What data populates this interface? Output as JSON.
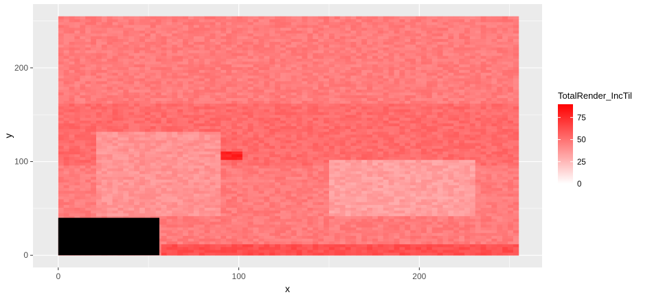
{
  "chart_data": {
    "type": "heatmap",
    "title": "",
    "xlabel": "x",
    "ylabel": "y",
    "x_range": [
      0,
      255
    ],
    "y_range": [
      0,
      255
    ],
    "xlim": [
      -14,
      268
    ],
    "ylim": [
      -13,
      268
    ],
    "x_ticks": [
      0,
      100,
      200
    ],
    "x_tick_labels": [
      "0",
      "100",
      "200"
    ],
    "y_ticks": [
      0,
      100,
      200
    ],
    "y_tick_labels": [
      "0",
      "100",
      "200"
    ],
    "grid": true,
    "panel_background": "#ebebeb",
    "gridline_color": "#ffffff",
    "legend": {
      "title": "TotalRender_IncTil",
      "position": "right",
      "breaks": [
        0,
        25,
        50,
        75
      ],
      "break_labels": [
        "0",
        "25",
        "50",
        "75"
      ],
      "limits": [
        0,
        90
      ],
      "low_color": "#ffffff",
      "high_color": "#ff0000"
    },
    "fill_regions": [
      {
        "description": "base field",
        "x": [
          0,
          255
        ],
        "y": [
          0,
          255
        ],
        "value": 46
      },
      {
        "description": "darker swath",
        "x": [
          0,
          255
        ],
        "y": [
          95,
          160
        ],
        "value": 52
      },
      {
        "description": "hot spot",
        "x": [
          88,
          100
        ],
        "y": [
          100,
          110
        ],
        "value": 78
      },
      {
        "description": "pale patch",
        "x": [
          150,
          230
        ],
        "y": [
          40,
          100
        ],
        "value": 34
      },
      {
        "description": "pale patch",
        "x": [
          20,
          90
        ],
        "y": [
          40,
          130
        ],
        "value": 38
      },
      {
        "description": "bottom strip",
        "x": [
          56,
          255
        ],
        "y": [
          0,
          10
        ],
        "value": 62
      }
    ],
    "missing_region": {
      "x": [
        0,
        56
      ],
      "y": [
        0,
        40
      ],
      "color": "#000000"
    }
  }
}
